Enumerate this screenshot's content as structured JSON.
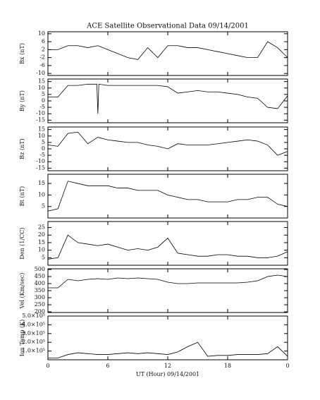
{
  "chart_data": [
    {
      "type": "line",
      "title": "ACE Satellite Observational Data   09/14/2001",
      "ylabel": "Bx (nT)",
      "color": "#000",
      "xlim": [
        0,
        24
      ],
      "ylim": [
        -11,
        11
      ],
      "yticks": [
        -10,
        -6,
        -2,
        2,
        6,
        10
      ],
      "x": [
        0,
        1,
        2,
        3,
        4,
        5,
        6,
        7,
        8,
        9,
        10,
        11,
        12,
        13,
        14,
        15,
        16,
        17,
        18,
        19,
        20,
        21,
        22,
        23,
        24
      ],
      "values": [
        2,
        2,
        4,
        4,
        3,
        4,
        2,
        0,
        -2,
        -3,
        3,
        -2,
        4,
        4,
        3,
        3,
        2,
        1,
        0,
        -1,
        -2,
        -2,
        6,
        3,
        -2
      ]
    },
    {
      "type": "line",
      "ylabel": "By (nT)",
      "color": "#000",
      "xlim": [
        0,
        24
      ],
      "ylim": [
        -17,
        17
      ],
      "yticks": [
        -15,
        -10,
        -5,
        0,
        5,
        10,
        15
      ],
      "x": [
        0,
        1,
        2,
        3,
        4,
        4.9,
        5,
        5.1,
        6,
        7,
        8,
        9,
        10,
        11,
        12,
        13,
        14,
        15,
        16,
        17,
        18,
        19,
        20,
        21,
        22,
        23,
        24
      ],
      "values": [
        3,
        3,
        12,
        12,
        13,
        13,
        -10,
        13,
        12,
        12,
        12,
        12,
        12,
        12,
        11,
        6,
        7,
        8,
        7,
        7,
        6,
        5,
        3,
        2,
        -5,
        -6,
        4
      ]
    },
    {
      "type": "line",
      "ylabel": "Bz (nT)",
      "color": "#000",
      "xlim": [
        0,
        24
      ],
      "ylim": [
        -17,
        17
      ],
      "yticks": [
        -15,
        -10,
        -5,
        0,
        5,
        10,
        15
      ],
      "x": [
        0,
        1,
        2,
        3,
        4,
        5,
        6,
        7,
        8,
        9,
        10,
        11,
        12,
        13,
        14,
        15,
        16,
        17,
        18,
        19,
        20,
        21,
        22,
        23,
        24
      ],
      "values": [
        3,
        2,
        12,
        13,
        4,
        9,
        7,
        6,
        5,
        5,
        3,
        2,
        0,
        4,
        3,
        3,
        3,
        4,
        5,
        6,
        7,
        6,
        3,
        -5,
        -2
      ]
    },
    {
      "type": "line",
      "ylabel": "Bt (nT)",
      "color": "#000",
      "xlim": [
        0,
        24
      ],
      "ylim": [
        0,
        19
      ],
      "yticks": [
        5,
        10,
        15
      ],
      "x": [
        0,
        1,
        2,
        3,
        4,
        5,
        6,
        7,
        8,
        9,
        10,
        11,
        12,
        13,
        14,
        15,
        16,
        17,
        18,
        19,
        20,
        21,
        22,
        23,
        24
      ],
      "values": [
        3,
        4,
        16,
        15,
        14,
        14,
        14,
        13,
        13,
        12,
        12,
        12,
        10,
        9,
        8,
        8,
        7,
        7,
        7,
        8,
        8,
        9,
        9,
        6,
        5
      ]
    },
    {
      "type": "line",
      "ylabel": "Den (1/CC)",
      "color": "#000",
      "xlim": [
        0,
        24
      ],
      "ylim": [
        0,
        29
      ],
      "yticks": [
        5,
        10,
        15,
        20,
        25
      ],
      "x": [
        0,
        1,
        2,
        3,
        4,
        5,
        6,
        7,
        8,
        9,
        10,
        11,
        12,
        13,
        14,
        15,
        16,
        17,
        18,
        19,
        20,
        21,
        22,
        23,
        24
      ],
      "values": [
        4,
        5,
        20,
        15,
        14,
        13,
        14,
        12,
        10,
        11,
        10,
        12,
        18,
        8,
        7,
        6,
        6,
        7,
        7,
        6,
        6,
        5,
        5,
        6,
        9
      ]
    },
    {
      "type": "line",
      "ylabel": "Vel (Km/sec)",
      "color": "#000",
      "xlim": [
        0,
        24
      ],
      "ylim": [
        195,
        505
      ],
      "yticks": [
        200,
        250,
        300,
        350,
        400,
        450,
        500
      ],
      "x": [
        0,
        1,
        2,
        3,
        4,
        5,
        6,
        7,
        8,
        9,
        10,
        11,
        12,
        13,
        14,
        15,
        16,
        17,
        18,
        19,
        20,
        21,
        22,
        23,
        24
      ],
      "values": [
        370,
        370,
        430,
        420,
        430,
        435,
        430,
        440,
        435,
        440,
        435,
        430,
        410,
        400,
        400,
        405,
        405,
        405,
        405,
        405,
        410,
        420,
        450,
        460,
        450
      ]
    },
    {
      "type": "line",
      "ylabel": "Ion Temp (K)",
      "xlabel": "UT (Hour)  09/14/2001",
      "color": "#000",
      "xlim": [
        0,
        24
      ],
      "ylim": [
        0,
        500000
      ],
      "yticks": [
        {
          "value": 100000,
          "label": "1.0×10⁵"
        },
        {
          "value": 200000,
          "label": "2.0×10⁵"
        },
        {
          "value": 300000,
          "label": "3.0×10⁵"
        },
        {
          "value": 400000,
          "label": "4.0×10⁵"
        },
        {
          "value": 500000,
          "label": "5.0×10⁵"
        }
      ],
      "xticks": [
        0,
        6,
        12,
        18,
        {
          "value": 24,
          "label": "0"
        }
      ],
      "x": [
        0,
        1,
        2,
        3,
        4,
        5,
        6,
        7,
        8,
        9,
        10,
        11,
        12,
        13,
        14,
        15,
        16,
        17,
        18,
        19,
        20,
        21,
        22,
        23,
        24
      ],
      "values": [
        20000,
        20000,
        60000,
        80000,
        70000,
        60000,
        60000,
        70000,
        80000,
        70000,
        80000,
        70000,
        60000,
        90000,
        150000,
        200000,
        40000,
        50000,
        50000,
        60000,
        60000,
        60000,
        70000,
        150000,
        40000
      ]
    }
  ]
}
